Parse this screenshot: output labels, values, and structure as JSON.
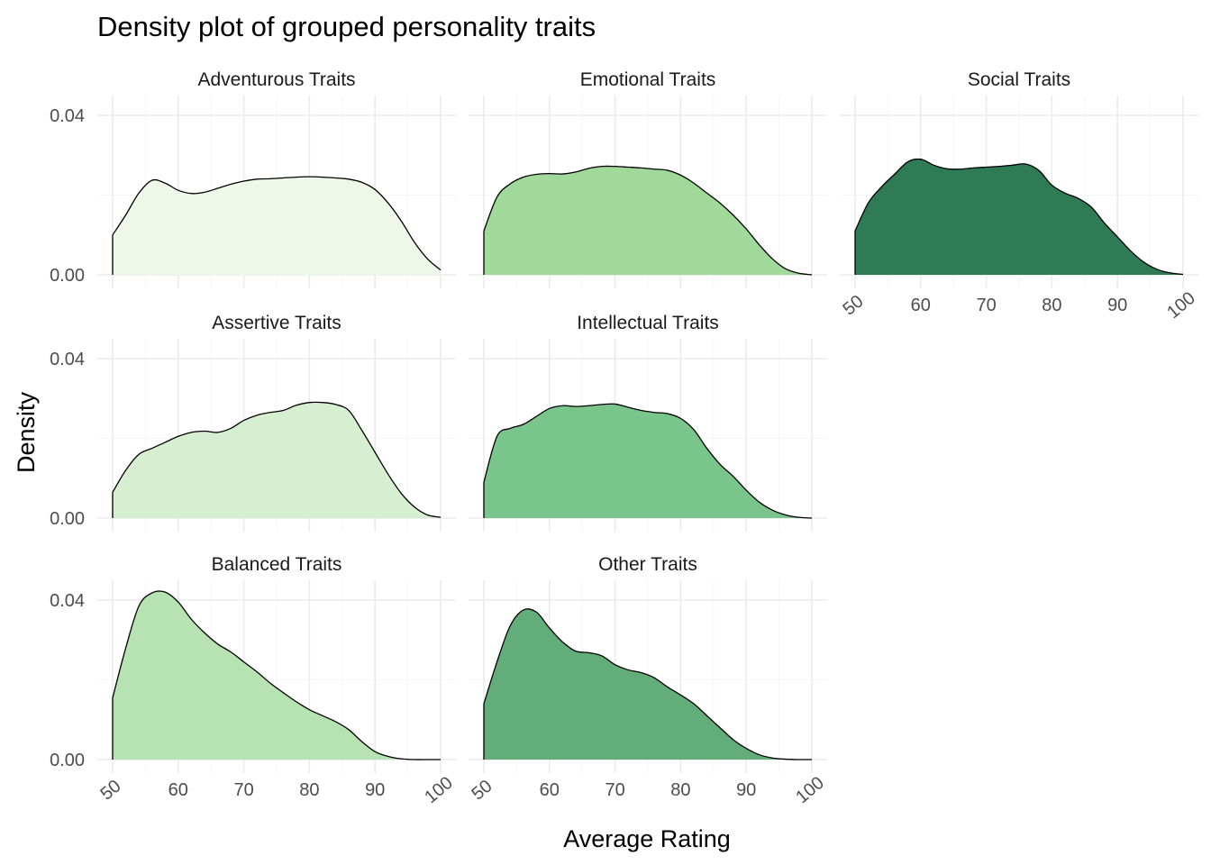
{
  "chart_data": {
    "type": "area",
    "subtype": "faceted density",
    "title": "Density plot of grouped personality traits",
    "xlabel": "Average Rating",
    "ylabel": "Density",
    "xlim": [
      50,
      100
    ],
    "ylim": [
      0,
      0.04
    ],
    "x_ticks": [
      "50",
      "60",
      "70",
      "80",
      "90",
      "100"
    ],
    "y_ticks": [
      "0.00",
      "0.04"
    ],
    "grid": true,
    "legend": "none",
    "panels": [
      {
        "name": "Adventurous Traits",
        "color": "#edf8e9",
        "x": [
          50,
          52,
          54,
          56,
          58,
          60,
          62,
          64,
          66,
          68,
          70,
          72,
          74,
          76,
          78,
          80,
          82,
          84,
          86,
          88,
          90,
          92,
          94,
          96,
          98,
          100
        ],
        "y": [
          0.01,
          0.015,
          0.0205,
          0.0237,
          0.023,
          0.0212,
          0.0204,
          0.0207,
          0.0217,
          0.0227,
          0.0235,
          0.024,
          0.0241,
          0.0243,
          0.0245,
          0.0246,
          0.0245,
          0.0243,
          0.024,
          0.0232,
          0.0214,
          0.018,
          0.0135,
          0.0082,
          0.004,
          0.0012
        ]
      },
      {
        "name": "Emotional Traits",
        "color": "#a1d99b",
        "x": [
          50,
          52,
          54,
          56,
          58,
          60,
          62,
          64,
          66,
          68,
          70,
          72,
          74,
          76,
          78,
          80,
          82,
          84,
          86,
          88,
          90,
          92,
          94,
          96,
          98,
          100
        ],
        "y": [
          0.011,
          0.0195,
          0.0228,
          0.0245,
          0.0252,
          0.0254,
          0.0253,
          0.0258,
          0.0267,
          0.0272,
          0.0272,
          0.027,
          0.0268,
          0.0265,
          0.0262,
          0.025,
          0.023,
          0.0205,
          0.018,
          0.015,
          0.0115,
          0.0075,
          0.004,
          0.0015,
          0.0004,
          0.0
        ]
      },
      {
        "name": "Social Traits",
        "color": "#2e7b55",
        "x": [
          50,
          52,
          54,
          56,
          58,
          60,
          62,
          64,
          66,
          68,
          70,
          72,
          74,
          76,
          78,
          80,
          82,
          84,
          86,
          88,
          90,
          92,
          94,
          96,
          98,
          100
        ],
        "y": [
          0.011,
          0.018,
          0.022,
          0.0252,
          0.0283,
          0.029,
          0.0275,
          0.0266,
          0.0265,
          0.0268,
          0.027,
          0.0272,
          0.0275,
          0.0278,
          0.0262,
          0.0225,
          0.0205,
          0.0192,
          0.017,
          0.013,
          0.0095,
          0.006,
          0.0032,
          0.0014,
          0.0005,
          0.0001
        ]
      },
      {
        "name": "Assertive Traits",
        "color": "#d7efd1",
        "x": [
          50,
          52,
          54,
          56,
          58,
          60,
          62,
          64,
          66,
          68,
          70,
          72,
          74,
          76,
          78,
          80,
          82,
          84,
          86,
          88,
          90,
          92,
          94,
          96,
          98,
          100
        ],
        "y": [
          0.0065,
          0.012,
          0.016,
          0.0175,
          0.019,
          0.0205,
          0.0215,
          0.0218,
          0.0215,
          0.0225,
          0.0245,
          0.0258,
          0.0265,
          0.027,
          0.0283,
          0.029,
          0.029,
          0.0285,
          0.027,
          0.022,
          0.0165,
          0.011,
          0.0062,
          0.0028,
          0.0008,
          0.0002
        ]
      },
      {
        "name": "Intellectual Traits",
        "color": "#79c58b",
        "x": [
          50,
          52,
          54,
          56,
          58,
          60,
          62,
          64,
          66,
          68,
          70,
          72,
          74,
          76,
          78,
          80,
          82,
          84,
          86,
          88,
          90,
          92,
          94,
          96,
          98,
          100
        ],
        "y": [
          0.009,
          0.0205,
          0.0225,
          0.0235,
          0.0255,
          0.0275,
          0.0282,
          0.028,
          0.0282,
          0.0285,
          0.0286,
          0.0278,
          0.027,
          0.0265,
          0.0262,
          0.025,
          0.0222,
          0.0175,
          0.0135,
          0.0105,
          0.007,
          0.004,
          0.002,
          0.0008,
          0.0002,
          0.0
        ]
      },
      {
        "name": "Balanced Traits",
        "color": "#b7e2b1",
        "x": [
          50,
          52,
          54,
          56,
          58,
          60,
          62,
          64,
          66,
          68,
          70,
          72,
          74,
          76,
          78,
          80,
          82,
          84,
          86,
          88,
          90,
          92,
          94,
          96,
          98,
          100
        ],
        "y": [
          0.0155,
          0.028,
          0.0385,
          0.0418,
          0.042,
          0.0395,
          0.0352,
          0.0318,
          0.029,
          0.027,
          0.0245,
          0.022,
          0.0192,
          0.0168,
          0.0145,
          0.0125,
          0.011,
          0.0095,
          0.0075,
          0.0045,
          0.002,
          0.0008,
          0.0002,
          0.0,
          0.0,
          0.0
        ]
      },
      {
        "name": "Other Traits",
        "color": "#62ad7a",
        "x": [
          50,
          52,
          54,
          56,
          58,
          60,
          62,
          64,
          66,
          68,
          70,
          72,
          74,
          76,
          78,
          80,
          82,
          84,
          86,
          88,
          90,
          92,
          94,
          96,
          98,
          100
        ],
        "y": [
          0.014,
          0.0245,
          0.0335,
          0.0375,
          0.037,
          0.033,
          0.0295,
          0.0272,
          0.0268,
          0.026,
          0.0238,
          0.0225,
          0.0218,
          0.0205,
          0.0182,
          0.0162,
          0.014,
          0.011,
          0.008,
          0.005,
          0.0028,
          0.0012,
          0.0004,
          0.0001,
          0.0,
          0.0
        ]
      }
    ]
  }
}
